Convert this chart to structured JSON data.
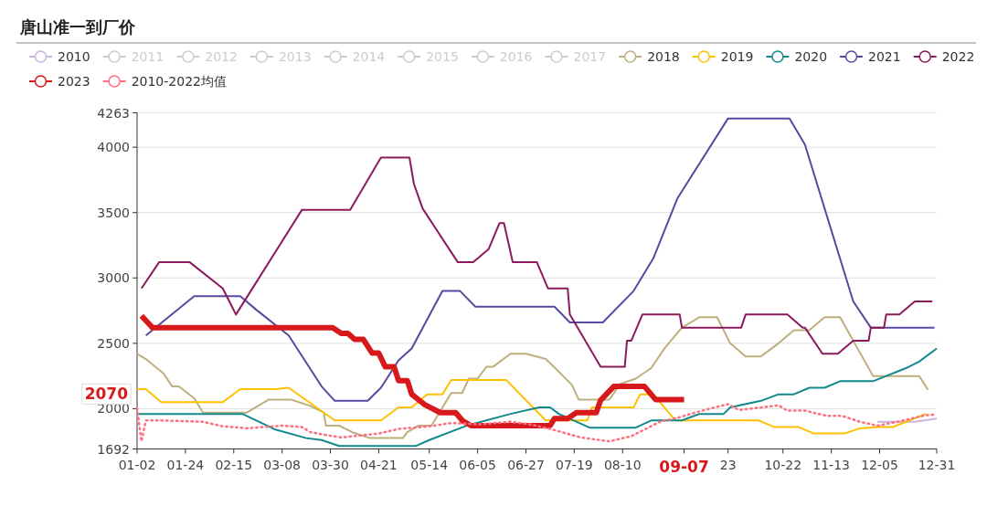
{
  "chart_data": {
    "type": "line",
    "title": "唐山准一到厂价",
    "legend": "top",
    "grid": "y",
    "xlim": [
      "--01-02",
      "--12-31"
    ],
    "xticks": [
      {
        "value": "--01-02",
        "label": "01-02"
      },
      {
        "value": "--01-24",
        "label": "01-24"
      },
      {
        "value": "--02-15",
        "label": "02-15"
      },
      {
        "value": "--03-08",
        "label": "03-08"
      },
      {
        "value": "--03-30",
        "label": "03-30"
      },
      {
        "value": "--04-21",
        "label": "04-21"
      },
      {
        "value": "--05-14",
        "label": "05-14"
      },
      {
        "value": "--06-05",
        "label": "06-05"
      },
      {
        "value": "--06-27",
        "label": "06-27"
      },
      {
        "value": "--07-19",
        "label": "07-19"
      },
      {
        "value": "--08-10",
        "label": "08-10"
      },
      {
        "value": "--09-07",
        "label": null
      },
      {
        "value": "--09-27",
        "label": "23"
      },
      {
        "value": "--10-22",
        "label": "10-22"
      },
      {
        "value": "--11-13",
        "label": "11-13"
      },
      {
        "value": "--12-05",
        "label": "12-05"
      },
      {
        "value": "--12-31",
        "label": "12-31"
      }
    ],
    "ylim": [
      1692,
      4263
    ],
    "yticks": [
      1692,
      2000,
      2500,
      3000,
      3500,
      4000,
      4263
    ],
    "annotations": [
      "2070",
      "09-07"
    ],
    "series": [
      {
        "name": "2010",
        "color": "#c9b3e0",
        "x": [
          "--12-04",
          "--12-21",
          "--12-31"
        ],
        "values": [
          1900,
          1900,
          1925
        ]
      },
      {
        "name": "2011",
        "color": "#cccccc"
      },
      {
        "name": "2012",
        "color": "#cccccc"
      },
      {
        "name": "2013",
        "color": "#cccccc"
      },
      {
        "name": "2014",
        "color": "#cccccc"
      },
      {
        "name": "2015",
        "color": "#cccccc"
      },
      {
        "name": "2016",
        "color": "#cccccc"
      },
      {
        "name": "2017",
        "color": "#cccccc"
      },
      {
        "name": "2018",
        "color": "#bfae7e",
        "x": [
          "--01-02",
          "--01-06",
          "--01-14",
          "--01-18",
          "--01-21",
          "--01-28",
          "--02-01",
          "--02-21",
          "--03-02",
          "--03-12",
          "--03-21",
          "--03-27",
          "--03-28",
          "--04-03",
          "--04-09",
          "--04-17",
          "--05-02",
          "--05-04",
          "--05-09",
          "--05-15",
          "--05-24",
          "--05-29",
          "--06-01",
          "--06-05",
          "--06-09",
          "--06-12",
          "--06-20",
          "--06-27",
          "--07-06",
          "--07-11",
          "--07-18",
          "--07-21",
          "--08-04",
          "--08-09",
          "--08-16",
          "--08-23",
          "--08-29",
          "--08-31",
          "--09-06",
          "--09-14",
          "--09-22",
          "--09-28",
          "--10-05",
          "--10-12",
          "--10-20",
          "--10-27",
          "--11-03",
          "--11-10",
          "--11-17",
          "--12-02",
          "--12-23",
          "--12-27"
        ],
        "values": [
          2420,
          2380,
          2270,
          2170,
          2170,
          2080,
          1970,
          1970,
          2070,
          2070,
          2020,
          1970,
          1870,
          1870,
          1820,
          1775,
          1775,
          1820,
          1870,
          1870,
          2120,
          2120,
          2230,
          2230,
          2320,
          2320,
          2420,
          2420,
          2380,
          2300,
          2180,
          2070,
          2070,
          2190,
          2230,
          2310,
          2460,
          2500,
          2620,
          2700,
          2700,
          2500,
          2400,
          2400,
          2500,
          2600,
          2600,
          2700,
          2700,
          2250,
          2250,
          2145
        ]
      },
      {
        "name": "2019",
        "color": "#ffc000",
        "x": [
          "--01-02",
          "--01-06",
          "--01-13",
          "--02-10",
          "--02-18",
          "--03-05",
          "--03-11",
          "--04-01",
          "--04-22",
          "--04-30",
          "--05-06",
          "--05-13",
          "--05-20",
          "--05-24",
          "--06-18",
          "--07-06",
          "--07-25",
          "--07-27",
          "--08-15",
          "--08-18",
          "--08-24",
          "--09-03",
          "--09-27",
          "--10-11",
          "--10-18",
          "--10-29",
          "--11-05",
          "--11-19",
          "--11-26",
          "--12-04",
          "--12-11",
          "--12-26"
        ],
        "values": [
          2150,
          2150,
          2050,
          2050,
          2150,
          2150,
          2160,
          1910,
          1910,
          2010,
          2010,
          2110,
          2110,
          2220,
          2220,
          1910,
          1910,
          2010,
          2010,
          2110,
          2110,
          1910,
          1910,
          1910,
          1860,
          1860,
          1810,
          1810,
          1850,
          1860,
          1860,
          1960
        ]
      },
      {
        "name": "2020",
        "color": "#12898c",
        "x": [
          "--01-02",
          "--02-19",
          "--03-05",
          "--03-19",
          "--03-26",
          "--04-03",
          "--05-08",
          "--05-14",
          "--05-31",
          "--06-20",
          "--07-03",
          "--07-08",
          "--07-12",
          "--07-26",
          "--08-16",
          "--08-23",
          "--09-06",
          "--09-14",
          "--09-25",
          "--09-28",
          "--10-12",
          "--10-20",
          "--10-27",
          "--11-03",
          "--11-10",
          "--11-17",
          "--12-02",
          "--12-17",
          "--12-23",
          "--12-31"
        ],
        "values": [
          1960,
          1960,
          1840,
          1775,
          1760,
          1715,
          1715,
          1760,
          1870,
          1960,
          2010,
          2010,
          1960,
          1855,
          1855,
          1910,
          1910,
          1960,
          1960,
          2010,
          2060,
          2110,
          2110,
          2160,
          2160,
          2210,
          2210,
          2310,
          2360,
          2460
        ]
      },
      {
        "name": "2021",
        "color": "#5848a0",
        "x": [
          "--01-06",
          "--01-28",
          "--02-18",
          "--02-25",
          "--03-11",
          "--03-26",
          "--04-01",
          "--04-16",
          "--04-22",
          "--04-30",
          "--05-06",
          "--05-20",
          "--05-28",
          "--06-04",
          "--07-10",
          "--07-17",
          "--08-01",
          "--08-15",
          "--08-24",
          "--09-04",
          "--09-27",
          "--10-25",
          "--11-01",
          "--11-23",
          "--12-01",
          "--12-30"
        ],
        "values": [
          2560,
          2860,
          2860,
          2760,
          2560,
          2170,
          2060,
          2060,
          2160,
          2370,
          2460,
          2900,
          2900,
          2780,
          2780,
          2660,
          2660,
          2900,
          3150,
          3610,
          4220,
          4220,
          4020,
          2820,
          2620,
          2620
        ]
      },
      {
        "name": "2022",
        "color": "#8a1a5c",
        "x": [
          "--01-04",
          "--01-12",
          "--01-26",
          "--02-10",
          "--02-16",
          "--03-17",
          "--04-08",
          "--04-22",
          "--05-05",
          "--05-07",
          "--05-11",
          "--05-27",
          "--06-03",
          "--06-10",
          "--06-15",
          "--06-17",
          "--06-21",
          "--07-02",
          "--07-07",
          "--07-16",
          "--07-17",
          "--07-31",
          "--08-11",
          "--08-12",
          "--08-14",
          "--08-19",
          "--09-05",
          "--09-06",
          "--10-03",
          "--10-05",
          "--10-24",
          "--10-31",
          "--11-01",
          "--11-09",
          "--11-16",
          "--11-23",
          "--11-30",
          "--12-01",
          "--12-07",
          "--12-08",
          "--12-14",
          "--12-21",
          "--12-29"
        ],
        "values": [
          2920,
          3120,
          3120,
          2920,
          2720,
          3520,
          3520,
          3920,
          3920,
          3720,
          3530,
          3120,
          3120,
          3220,
          3420,
          3420,
          3120,
          3120,
          2920,
          2920,
          2720,
          2320,
          2320,
          2520,
          2520,
          2720,
          2720,
          2620,
          2620,
          2720,
          2720,
          2620,
          2620,
          2420,
          2420,
          2520,
          2520,
          2620,
          2620,
          2720,
          2720,
          2820,
          2820
        ]
      },
      {
        "name": "2023",
        "color": "#d7191c",
        "x": [
          "--01-04",
          "--01-09",
          "--03-31",
          "--04-04",
          "--04-07",
          "--04-10",
          "--04-14",
          "--04-18",
          "--04-21",
          "--04-24",
          "--04-28",
          "--04-30",
          "--05-04",
          "--05-06",
          "--05-12",
          "--05-19",
          "--05-26",
          "--05-29",
          "--06-02",
          "--07-08",
          "--07-10",
          "--07-16",
          "--07-20",
          "--07-29",
          "--07-31",
          "--08-06",
          "--08-20",
          "--08-25",
          "--09-07"
        ],
        "values": [
          2710,
          2620,
          2620,
          2575,
          2575,
          2530,
          2530,
          2425,
          2425,
          2320,
          2320,
          2215,
          2215,
          2110,
          2030,
          1970,
          1970,
          1910,
          1870,
          1870,
          1925,
          1925,
          1970,
          1970,
          2065,
          2170,
          2170,
          2070,
          2070
        ]
      },
      {
        "name": "2010-2022均值",
        "color": "#ff6f7f",
        "line_style": "dotted",
        "x": [
          "--01-02",
          "--01-04",
          "--01-06",
          "--01-12",
          "--01-23",
          "--02-01",
          "--02-10",
          "--02-14",
          "--02-21",
          "--03-08",
          "--03-17",
          "--03-21",
          "--03-31",
          "--04-04",
          "--04-21",
          "--04-30",
          "--05-14",
          "--05-24",
          "--06-06",
          "--06-20",
          "--06-29",
          "--07-08",
          "--07-22",
          "--08-04",
          "--08-14",
          "--08-27",
          "--09-05",
          "--09-14",
          "--09-27",
          "--10-02",
          "--10-20",
          "--10-24",
          "--11-01",
          "--11-11",
          "--11-18",
          "--11-26",
          "--12-04",
          "--12-13",
          "--12-26",
          "--12-31"
        ],
        "values": [
          2005,
          1750,
          1910,
          1910,
          1905,
          1900,
          1865,
          1860,
          1850,
          1870,
          1860,
          1820,
          1790,
          1780,
          1810,
          1845,
          1865,
          1890,
          1880,
          1900,
          1880,
          1845,
          1780,
          1750,
          1790,
          1900,
          1935,
          1980,
          2035,
          1990,
          2025,
          1985,
          1985,
          1945,
          1945,
          1900,
          1870,
          1900,
          1950,
          1955
        ]
      }
    ]
  }
}
